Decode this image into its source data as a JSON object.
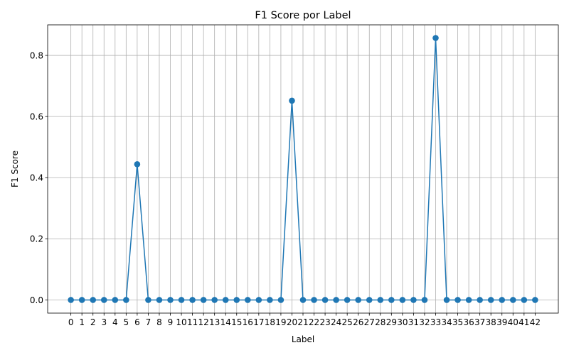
{
  "chart_data": {
    "type": "line",
    "title": "F1 Score por Label",
    "xlabel": "Label",
    "ylabel": "F1 Score",
    "x": [
      0,
      1,
      2,
      3,
      4,
      5,
      6,
      7,
      8,
      9,
      10,
      11,
      12,
      13,
      14,
      15,
      16,
      17,
      18,
      19,
      20,
      21,
      22,
      23,
      24,
      25,
      26,
      27,
      28,
      29,
      30,
      31,
      32,
      33,
      34,
      35,
      36,
      37,
      38,
      39,
      40,
      41,
      42
    ],
    "series": [
      {
        "values": [
          0,
          0,
          0,
          0,
          0,
          0,
          0.444,
          0,
          0,
          0,
          0,
          0,
          0,
          0,
          0,
          0,
          0,
          0,
          0,
          0,
          0.652,
          0,
          0,
          0,
          0,
          0,
          0,
          0,
          0,
          0,
          0,
          0,
          0,
          0.857,
          0,
          0,
          0,
          0,
          0,
          0,
          0,
          0,
          0
        ],
        "color": "#1f77b4",
        "marker": "circle"
      }
    ],
    "ylim": [
      -0.043,
      0.9
    ],
    "yticks": [
      0.0,
      0.2,
      0.4,
      0.6,
      0.8
    ],
    "ytick_labels": [
      "0.0",
      "0.2",
      "0.4",
      "0.6",
      "0.8"
    ],
    "xlim": [
      -2.1,
      44.1
    ],
    "grid": true
  }
}
